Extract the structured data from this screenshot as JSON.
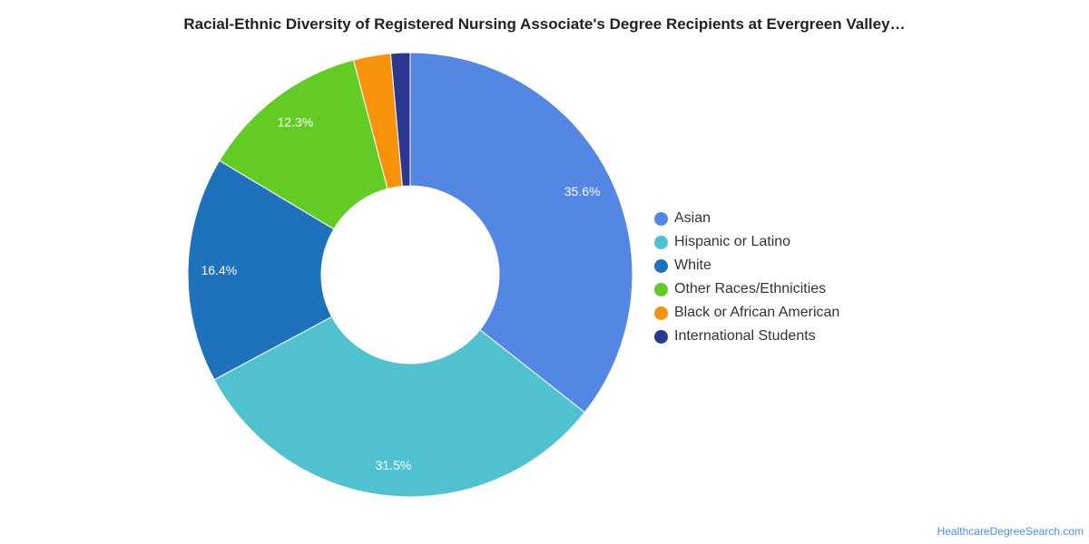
{
  "chart_data": {
    "type": "pie",
    "title": "Racial-Ethnic Diversity of Registered Nursing Associate's Degree Recipients at Evergreen Valley…",
    "donut": true,
    "legend_position": "right",
    "categories": [
      "Asian",
      "Hispanic or Latino",
      "White",
      "Other Races/Ethnicities",
      "Black or African American",
      "International Students"
    ],
    "values": [
      35.6,
      31.5,
      16.4,
      12.3,
      2.7,
      1.4
    ],
    "data_labels": [
      "35.6%",
      "31.5%",
      "16.4%",
      "12.3%",
      "",
      ""
    ],
    "colors": [
      "#5486e3",
      "#4fc1cf",
      "#1e72bb",
      "#62cc25",
      "#f7930b",
      "#2b388f"
    ]
  },
  "footer": {
    "credit": "HealthcareDegreeSearch.com"
  }
}
